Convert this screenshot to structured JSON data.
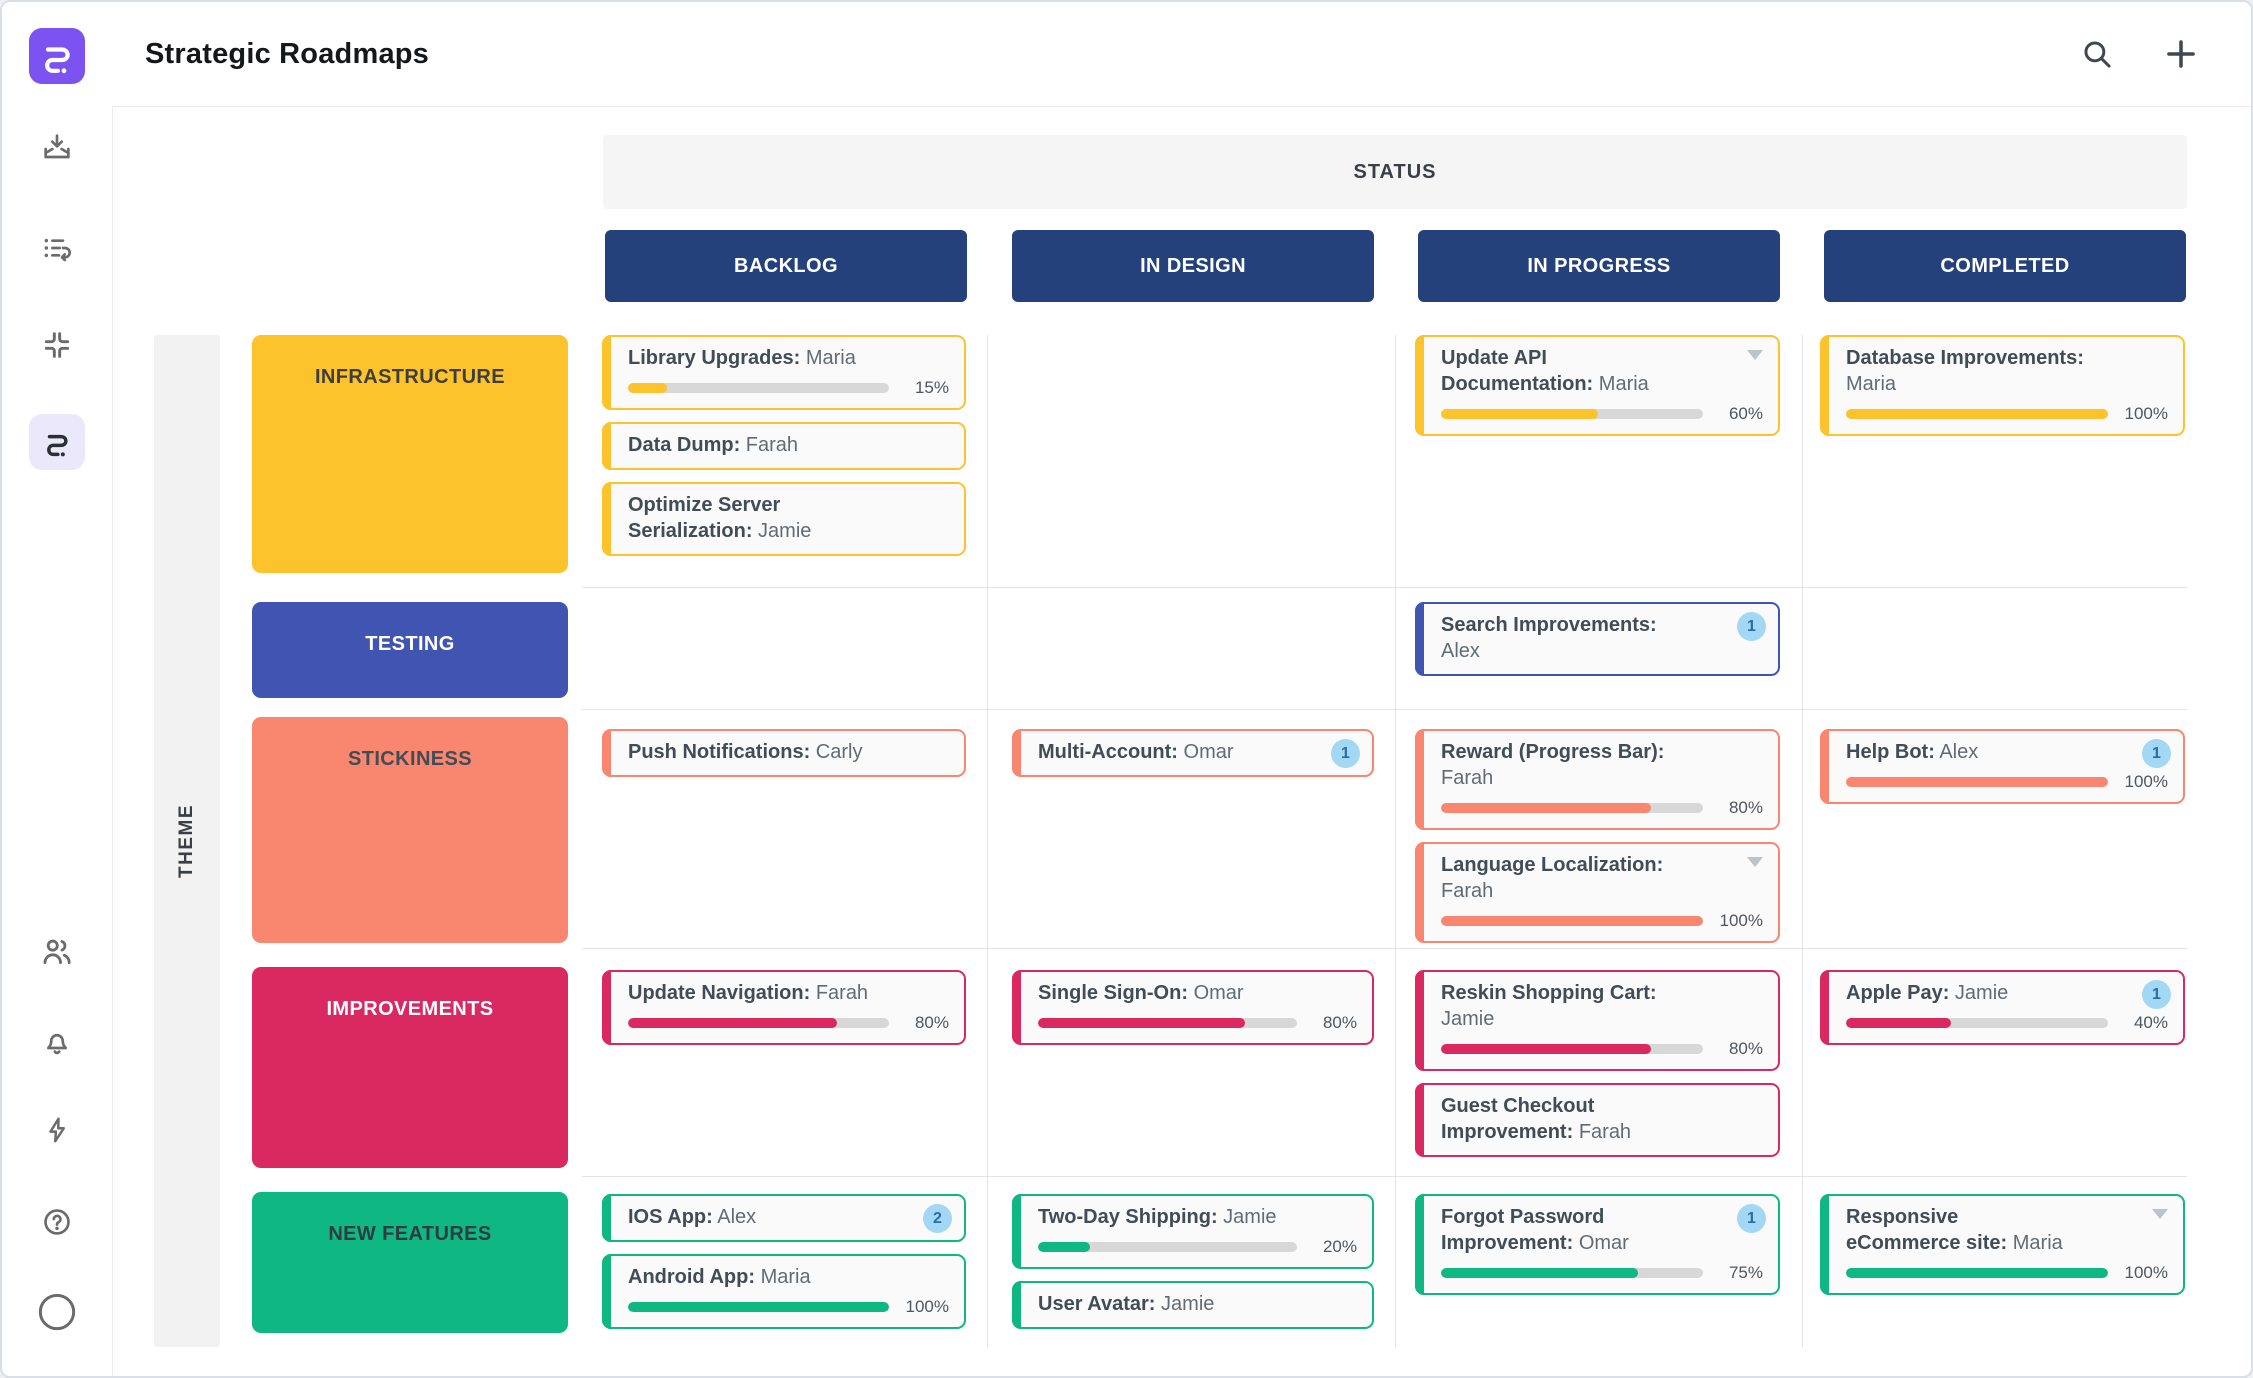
{
  "header": {
    "title": "Strategic Roadmaps",
    "actions": {
      "search_icon": "search-icon",
      "add_icon": "plus-icon"
    }
  },
  "sidebar": {
    "icons": [
      "roadmunk-logo",
      "import-tray-icon",
      "activity-list-icon",
      "corner-brackets-icon",
      "roadmap-active-icon",
      "team-icon",
      "notifications-bell-icon",
      "quick-actions-bolt-icon",
      "help-icon",
      "avatar-circle"
    ]
  },
  "colors": {
    "accent_purple": "#7C52F0",
    "column_header_bg": "#24417C",
    "status_bar_bg": "#F5F5F6",
    "badge_bg": "#A3D8F4",
    "badge_text": "#2B6CA3",
    "progress_track": "#D8D8D8",
    "grid_line": "#E4E4E4",
    "card_bg": "#FAFAFA"
  },
  "board": {
    "group_header": "STATUS",
    "axis_label": "THEME",
    "columns": [
      "BACKLOG",
      "IN DESIGN",
      "IN PROGRESS",
      "COMPLETED"
    ],
    "rows": [
      {
        "theme": "INFRASTRUCTURE",
        "color": "#FCC32C",
        "label_color": "#3E3E3E",
        "cells": {
          "backlog": [
            {
              "label": "Library Upgrades:",
              "person": "Maria",
              "progress": 15,
              "progress_label": "15%"
            },
            {
              "label": "Data Dump:",
              "person": "Farah"
            },
            {
              "label": "Optimize Server Serialization:",
              "person": "Jamie"
            }
          ],
          "in_design": [],
          "in_progress": [
            {
              "label": "Update API Documentation:",
              "person": "Maria",
              "progress": 60,
              "progress_label": "60%",
              "has_dropdown": true
            }
          ],
          "completed": [
            {
              "label": "Database Improvements:",
              "person": "Maria",
              "progress": 100,
              "progress_label": "100%"
            }
          ]
        }
      },
      {
        "theme": "TESTING",
        "color": "#4054B2",
        "label_color": "#FFFFFF",
        "cells": {
          "backlog": [],
          "in_design": [],
          "in_progress": [
            {
              "label": "Search Improvements:",
              "person": "Alex",
              "badge": "1"
            }
          ],
          "completed": []
        }
      },
      {
        "theme": "STICKINESS",
        "color": "#F9866F",
        "label_color": "#424C56",
        "cells": {
          "backlog": [
            {
              "label": "Push Notifications:",
              "person": "Carly"
            }
          ],
          "in_design": [
            {
              "label": "Multi-Account:",
              "person": "Omar",
              "badge": "1"
            }
          ],
          "in_progress": [
            {
              "label": "Reward (Progress Bar):",
              "person": "Farah",
              "progress": 80,
              "progress_label": "80%"
            },
            {
              "label": "Language Localization:",
              "person": "Farah",
              "progress": 100,
              "progress_label": "100%",
              "has_dropdown": true
            }
          ],
          "completed": [
            {
              "label": "Help Bot:",
              "person": "Alex",
              "badge": "1",
              "progress": 100,
              "progress_label": "100%"
            }
          ]
        }
      },
      {
        "theme": "IMPROVEMENTS",
        "color": "#D92960",
        "label_color": "#FFFFFF",
        "cells": {
          "backlog": [
            {
              "label": "Update Navigation:",
              "person": "Farah",
              "progress": 80,
              "progress_label": "80%"
            }
          ],
          "in_design": [
            {
              "label": "Single Sign-On:",
              "person": "Omar",
              "progress": 80,
              "progress_label": "80%"
            }
          ],
          "in_progress": [
            {
              "label": "Reskin Shopping Cart:",
              "person": "Jamie",
              "progress": 80,
              "progress_label": "80%"
            },
            {
              "label": "Guest Checkout Improvement:",
              "person": "Farah"
            }
          ],
          "completed": [
            {
              "label": "Apple Pay:",
              "person": "Jamie",
              "badge": "1",
              "progress": 40,
              "progress_label": "40%"
            }
          ]
        }
      },
      {
        "theme": "NEW FEATURES",
        "color": "#0FB783",
        "label_color": "#2E3B40",
        "cells": {
          "backlog": [
            {
              "label": "IOS App:",
              "person": "Alex",
              "badge": "2"
            },
            {
              "label": "Android App:",
              "person": "Maria",
              "progress": 100,
              "progress_label": "100%"
            }
          ],
          "in_design": [
            {
              "label": "Two-Day Shipping:",
              "person": "Jamie",
              "progress": 20,
              "progress_label": "20%"
            },
            {
              "label": "User Avatar:",
              "person": "Jamie"
            }
          ],
          "in_progress": [
            {
              "label": "Forgot Password Improvement:",
              "person": "Omar",
              "badge": "1",
              "progress": 75,
              "progress_label": "75%"
            }
          ],
          "completed": [
            {
              "label": "Responsive eCommerce site:",
              "person": "Maria",
              "progress": 100,
              "progress_label": "100%",
              "has_dropdown": true
            }
          ]
        }
      }
    ]
  }
}
